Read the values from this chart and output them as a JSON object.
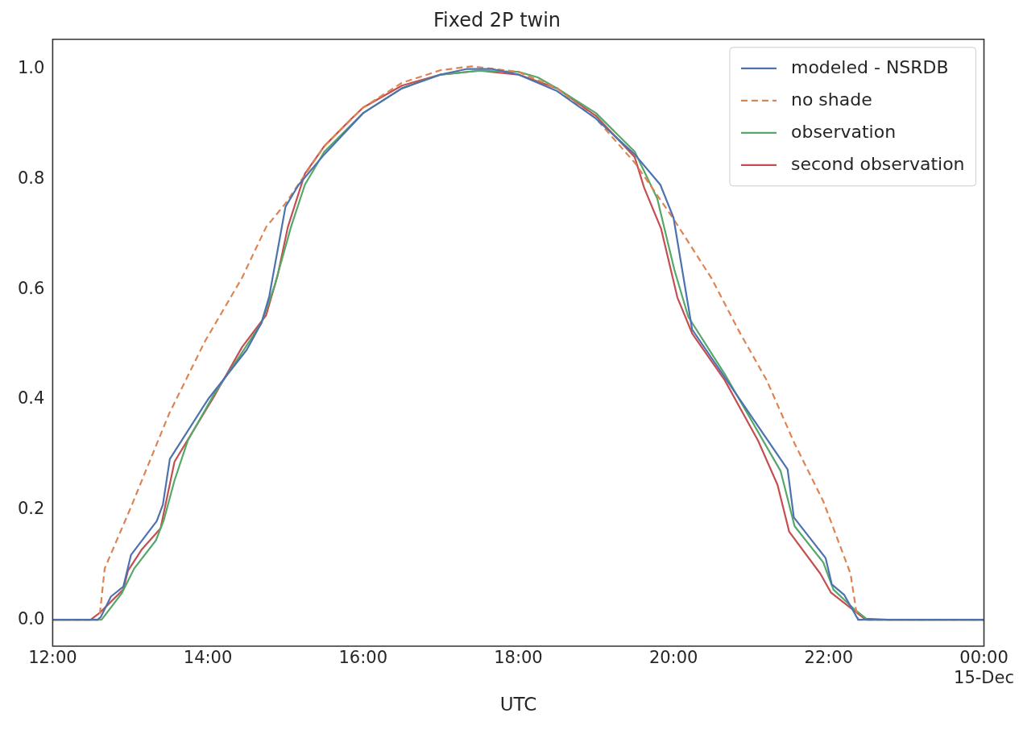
{
  "chart_data": {
    "type": "line",
    "title": "Fixed 2P twin",
    "xlabel": "UTC",
    "xlim": [
      12,
      24
    ],
    "ylim": [
      -0.048,
      1.054
    ],
    "xticks": [
      {
        "value": 12,
        "label": "12:00"
      },
      {
        "value": 14,
        "label": "14:00"
      },
      {
        "value": 16,
        "label": "16:00"
      },
      {
        "value": 18,
        "label": "18:00"
      },
      {
        "value": 20,
        "label": "20:00"
      },
      {
        "value": 22,
        "label": "22:00"
      },
      {
        "value": 24,
        "label": "00:00\n15-Dec"
      }
    ],
    "yticks": [
      {
        "value": 0,
        "label": "0.0"
      },
      0.2,
      0.4,
      0.6,
      0.8,
      {
        "value": 1,
        "label": "1.0"
      }
    ],
    "grid": false,
    "legend": "top right",
    "marker": "none",
    "series": [
      {
        "name": "modeled - NSRDB",
        "color": "#4c72b0",
        "line_style": "solid",
        "x": [
          12,
          12.5,
          12.58,
          12.62,
          12.75,
          12.91,
          13.01,
          13.34,
          13.42,
          13.51,
          14.0,
          14.5,
          14.69,
          14.79,
          15.0,
          15.17,
          15.5,
          16,
          16.5,
          17,
          17.33,
          17.67,
          18,
          18.5,
          19,
          19.5,
          19.83,
          20.0,
          20.24,
          21.0,
          21.47,
          21.55,
          21.96,
          22.04,
          22.2,
          22.38,
          24
        ],
        "values": [
          0,
          0,
          0,
          0.005,
          0.042,
          0.06,
          0.118,
          0.179,
          0.209,
          0.292,
          0.4,
          0.49,
          0.539,
          0.587,
          0.75,
          0.79,
          0.845,
          0.92,
          0.965,
          0.99,
          1.0,
          1.0,
          0.99,
          0.96,
          0.91,
          0.845,
          0.79,
          0.73,
          0.527,
          0.37,
          0.273,
          0.186,
          0.112,
          0.064,
          0.045,
          0,
          0
        ]
      },
      {
        "name": "no shade",
        "color": "#dd8452",
        "line_style": "dashed",
        "x": [
          12,
          12.6,
          12.67,
          13.01,
          13.5,
          13.96,
          14.44,
          14.75,
          15.0,
          15.5,
          16,
          16.5,
          17,
          17.4,
          18,
          18.5,
          19,
          19.5,
          19.99,
          20.49,
          20.84,
          21.2,
          21.56,
          21.93,
          22.28,
          22.35,
          22.38,
          24
        ],
        "values": [
          0,
          0,
          0.093,
          0.205,
          0.374,
          0.505,
          0.621,
          0.713,
          0.756,
          0.86,
          0.93,
          0.975,
          0.998,
          1.005,
          0.995,
          0.965,
          0.91,
          0.83,
          0.73,
          0.62,
          0.525,
          0.435,
          0.32,
          0.215,
          0.084,
          0.02,
          0,
          0
        ]
      },
      {
        "name": "observation",
        "color": "#55a868",
        "line_style": "solid",
        "x": [
          12,
          12.5,
          12.63,
          12.89,
          13.05,
          13.33,
          13.43,
          13.57,
          13.74,
          14.09,
          14.44,
          14.69,
          14.86,
          15.07,
          15.25,
          15.5,
          16,
          16.5,
          17,
          17.5,
          18,
          18.25,
          18.5,
          19,
          19.5,
          19.79,
          20.01,
          20.19,
          20.66,
          21.38,
          21.56,
          21.93,
          22.06,
          22.33,
          22.5,
          24
        ],
        "values": [
          0,
          0,
          0,
          0.048,
          0.093,
          0.144,
          0.18,
          0.253,
          0.325,
          0.412,
          0.485,
          0.539,
          0.607,
          0.713,
          0.79,
          0.85,
          0.92,
          0.965,
          0.99,
          0.997,
          0.995,
          0.985,
          0.965,
          0.92,
          0.85,
          0.765,
          0.636,
          0.55,
          0.446,
          0.27,
          0.17,
          0.104,
          0.055,
          0.019,
          0,
          0
        ]
      },
      {
        "name": "second observation",
        "color": "#c44e52",
        "line_style": "solid",
        "x": [
          12,
          12.49,
          12.61,
          12.91,
          12.97,
          13.15,
          13.39,
          13.57,
          14.09,
          14.44,
          14.75,
          14.9,
          15.03,
          15.25,
          15.5,
          15.85,
          16,
          16.5,
          17,
          17.5,
          18,
          18.5,
          19,
          19.5,
          19.62,
          19.84,
          20.05,
          20.24,
          20.66,
          21.09,
          21.34,
          21.49,
          21.89,
          22.03,
          22.25,
          22.46,
          22.77,
          24
        ],
        "values": [
          0,
          0,
          0.013,
          0.055,
          0.089,
          0.128,
          0.166,
          0.287,
          0.408,
          0.495,
          0.553,
          0.626,
          0.713,
          0.81,
          0.86,
          0.91,
          0.93,
          0.97,
          0.99,
          0.997,
          0.99,
          0.965,
          0.915,
          0.84,
          0.785,
          0.71,
          0.585,
          0.52,
          0.435,
          0.325,
          0.245,
          0.16,
          0.084,
          0.049,
          0.025,
          0.002,
          0,
          0
        ]
      }
    ]
  }
}
